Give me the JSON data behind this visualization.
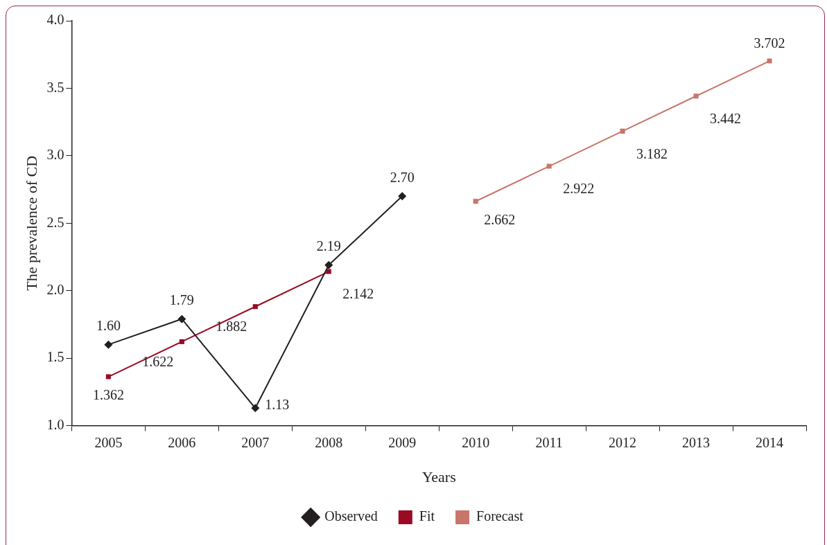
{
  "chart_data": {
    "type": "line",
    "xlabel": "Years",
    "ylabel": "The prevalence of CD",
    "categories": [
      "2005",
      "2006",
      "2007",
      "2008",
      "2009",
      "2010",
      "2011",
      "2012",
      "2013",
      "2014"
    ],
    "ylim": [
      1.0,
      4.0
    ],
    "yticks": [
      {
        "value": 1,
        "label": "1.0"
      },
      {
        "value": 1.5,
        "label": "1.5"
      },
      {
        "value": 2,
        "label": "2.0"
      },
      {
        "value": 2.5,
        "label": "2.5"
      },
      {
        "value": 3,
        "label": "3.0"
      },
      {
        "value": 3.5,
        "label": "3.5"
      },
      {
        "value": 4,
        "label": "4.0"
      }
    ],
    "grid": false,
    "legend": "bottom",
    "line_style": "solid",
    "series": [
      {
        "name": "Observed",
        "color": "#231f20",
        "marker": "diamond",
        "values": [
          1.6,
          1.79,
          1.13,
          2.19,
          2.7,
          null,
          null,
          null,
          null,
          null
        ],
        "value_labels": [
          "1.60",
          "1.79",
          "1.13",
          "2.19",
          "2.70",
          null,
          null,
          null,
          null,
          null
        ]
      },
      {
        "name": "Fit",
        "color": "#9b0a22",
        "marker": "square",
        "values": [
          1.362,
          1.622,
          1.882,
          2.142,
          null,
          null,
          null,
          null,
          null,
          null
        ],
        "value_labels": [
          "1.362",
          "1.622",
          "1.882",
          "2.142",
          null,
          null,
          null,
          null,
          null,
          null
        ]
      },
      {
        "name": "Forecast",
        "color": "#c8756a",
        "marker": "square",
        "values": [
          null,
          null,
          null,
          null,
          null,
          2.662,
          2.922,
          3.182,
          3.442,
          3.702
        ],
        "value_labels": [
          null,
          null,
          null,
          null,
          null,
          "2.662",
          "2.922",
          "3.182",
          "3.442",
          "3.702"
        ]
      }
    ]
  }
}
